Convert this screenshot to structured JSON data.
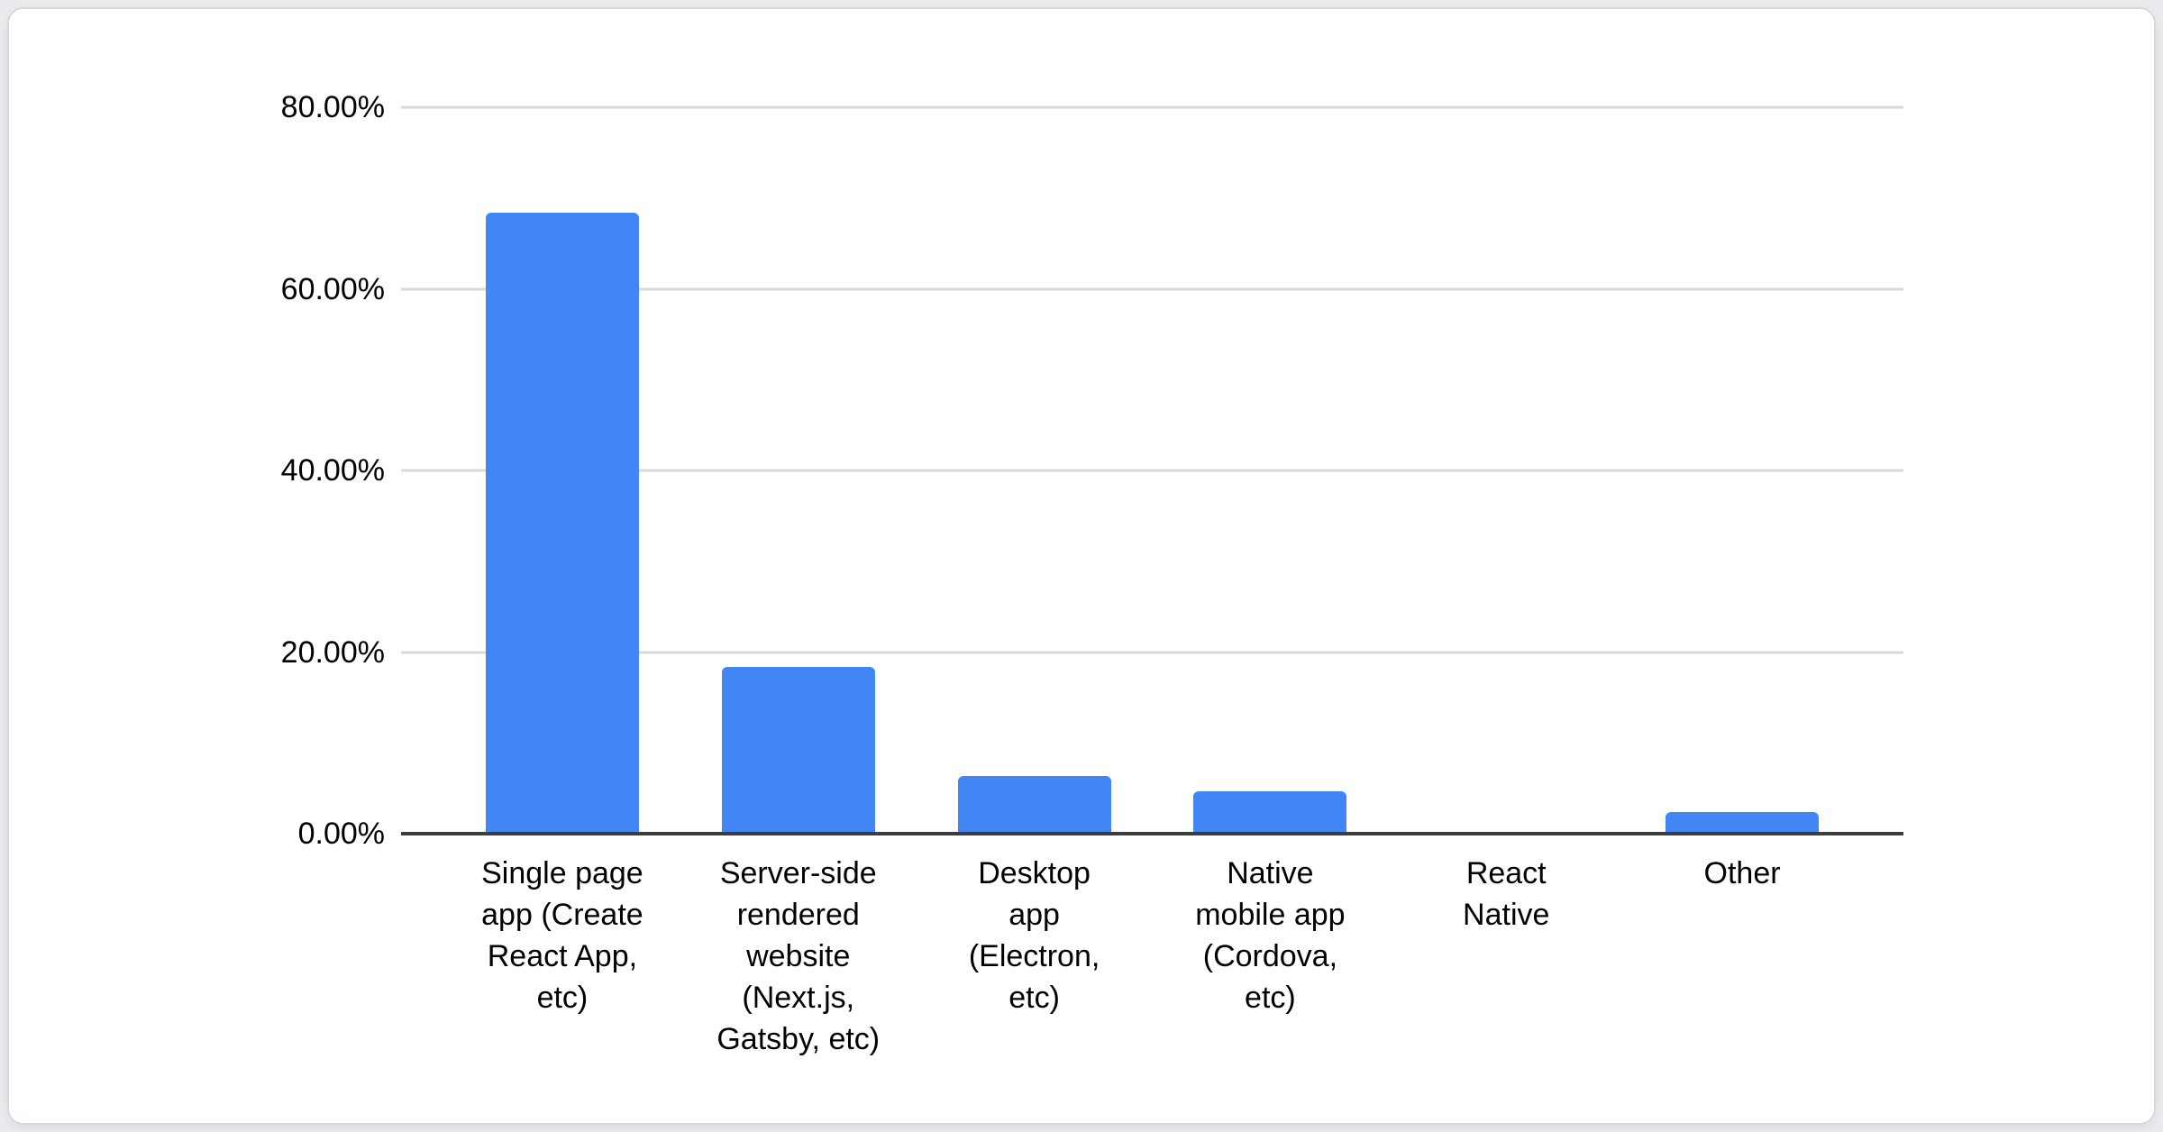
{
  "chart_data": {
    "type": "bar",
    "title": "",
    "xlabel": "",
    "ylabel": "",
    "unit": "%",
    "categories": [
      "Single page app (Create React App, etc)",
      "Server-side rendered website (Next.js, Gatsby, etc)",
      "Desktop app (Electron, etc)",
      "Native mobile app (Cordova, etc)",
      "React Native",
      "Other"
    ],
    "categories_wrapped": [
      "Single page\napp (Create\nReact App,\netc)",
      "Server-side\nrendered\nwebsite\n(Next.js,\nGatsby, etc)",
      "Desktop\napp\n(Electron,\netc)",
      "Native\nmobile app\n(Cordova,\netc)",
      "React\nNative",
      "Other"
    ],
    "values": [
      68.4,
      18.4,
      6.4,
      4.7,
      0,
      2.4
    ],
    "ylim": [
      0,
      80
    ],
    "yticks": [
      {
        "value": 0,
        "label": "0.00%"
      },
      {
        "value": 20,
        "label": "20.00%"
      },
      {
        "value": 40,
        "label": "40.00%"
      },
      {
        "value": 60,
        "label": "60.00%"
      },
      {
        "value": 80,
        "label": "80.00%"
      }
    ],
    "grid": true,
    "legend": "none",
    "bar_color": "#4285f4",
    "gridline_color": "#d9d9d9",
    "axis_line_color": "#3d3d3d",
    "text_color": "#000000"
  }
}
